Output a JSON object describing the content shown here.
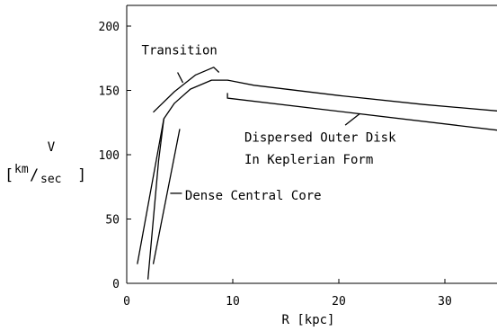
{
  "chart_data": {
    "type": "line",
    "title": "",
    "xlabel": "R [kpc]",
    "ylabel": {
      "symbol": "V",
      "open_bracket": "[",
      "unit_num": "km",
      "slash": "/",
      "unit_den": "sec",
      "close_bracket": "]"
    },
    "xlim": [
      0,
      35
    ],
    "ylim": [
      0,
      200
    ],
    "x_ticks": [
      {
        "value": 0,
        "label": "0"
      },
      {
        "value": 10,
        "label": "10"
      },
      {
        "value": 20,
        "label": "20"
      },
      {
        "value": 30,
        "label": "30"
      }
    ],
    "y_ticks": [
      {
        "value": 0,
        "label": "0"
      },
      {
        "value": 50,
        "label": "50"
      },
      {
        "value": 100,
        "label": "100"
      },
      {
        "value": 150,
        "label": "150"
      },
      {
        "value": 200,
        "label": "200"
      }
    ],
    "grid": false,
    "series": [
      {
        "points": [
          [
            2.0,
            3
          ],
          [
            3.0,
            95
          ],
          [
            3.5,
            128
          ],
          [
            4.5,
            140
          ],
          [
            6.0,
            151
          ],
          [
            8.0,
            158
          ],
          [
            9.5,
            158
          ],
          [
            12.0,
            154
          ],
          [
            20.0,
            146
          ],
          [
            28.0,
            139
          ],
          [
            35.0,
            134
          ]
        ]
      }
    ],
    "brackets": [
      {
        "name": "core-bracket",
        "points": [
          [
            1.0,
            15
          ],
          [
            3.5,
            128
          ]
        ]
      },
      {
        "name": "core-bracket",
        "points": [
          [
            2.5,
            15
          ],
          [
            5.0,
            120
          ]
        ]
      },
      {
        "name": "transition-bracket",
        "points": [
          [
            2.5,
            133
          ],
          [
            4.5,
            149
          ],
          [
            6.5,
            162
          ],
          [
            8.2,
            168
          ],
          [
            8.7,
            164
          ]
        ]
      },
      {
        "name": "outer-disk-bracket",
        "points": [
          [
            9.5,
            148
          ],
          [
            9.5,
            144
          ],
          [
            35.0,
            119
          ]
        ]
      }
    ],
    "leader_lines": [
      {
        "name": "transition-leader",
        "points": [
          [
            5.3,
            156
          ],
          [
            4.8,
            164
          ]
        ]
      },
      {
        "name": "core-leader",
        "points": [
          [
            4.1,
            70
          ],
          [
            5.2,
            70
          ]
        ]
      },
      {
        "name": "outer-disk-leader",
        "points": [
          [
            22.0,
            132
          ],
          [
            20.6,
            123
          ]
        ]
      }
    ],
    "annotations": [
      {
        "text": "Transition",
        "x": 1.4,
        "y": 178
      },
      {
        "text": "Dispersed Outer Disk",
        "x": 11.1,
        "y": 110
      },
      {
        "text": "In Keplerian Form",
        "x": 11.1,
        "y": 93
      },
      {
        "text": "Dense Central Core",
        "x": 5.5,
        "y": 65
      }
    ]
  }
}
